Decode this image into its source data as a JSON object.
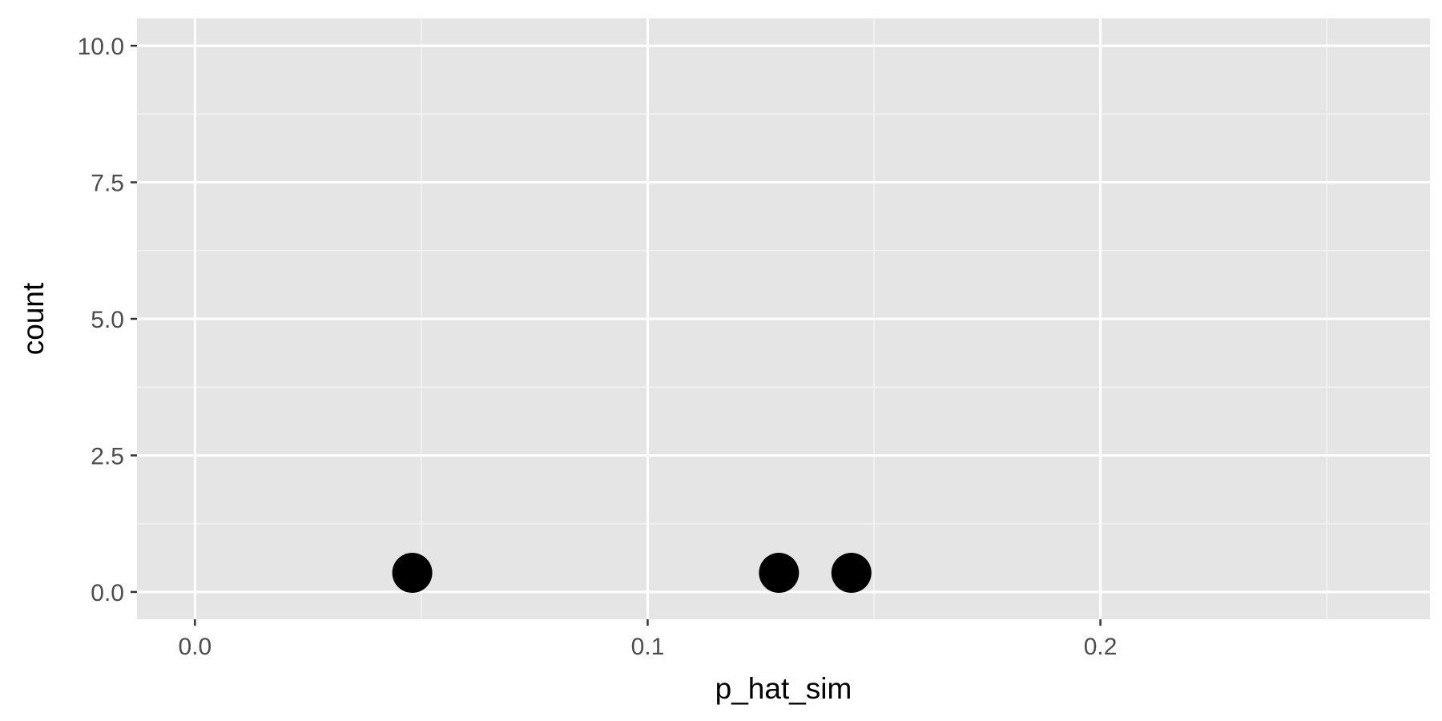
{
  "chart_data": {
    "type": "scatter",
    "title": "",
    "xlabel": "p_hat_sim",
    "ylabel": "count",
    "xlim": [
      -0.0128,
      0.2728
    ],
    "ylim": [
      -0.5,
      10.5
    ],
    "x_ticks": [
      0.0,
      0.1,
      0.2
    ],
    "x_tick_labels": [
      "0.0",
      "0.1",
      "0.2"
    ],
    "y_ticks": [
      0.0,
      2.5,
      5.0,
      7.5,
      10.0
    ],
    "y_tick_labels": [
      "0.0",
      "2.5",
      "5.0",
      "7.5",
      "10.0"
    ],
    "grid": true,
    "legend": "none",
    "points": [
      {
        "x": 0.048,
        "y": 0.35
      },
      {
        "x": 0.129,
        "y": 0.35
      },
      {
        "x": 0.145,
        "y": 0.35
      }
    ],
    "colors": {
      "panel_background": "#e5e5e5",
      "grid_major": "#ffffff",
      "grid_minor": "#f2f2f2",
      "point": "#000000",
      "tick_label": "#4d4d4d",
      "axis_title": "#000000",
      "tick_mark": "#333333"
    }
  }
}
